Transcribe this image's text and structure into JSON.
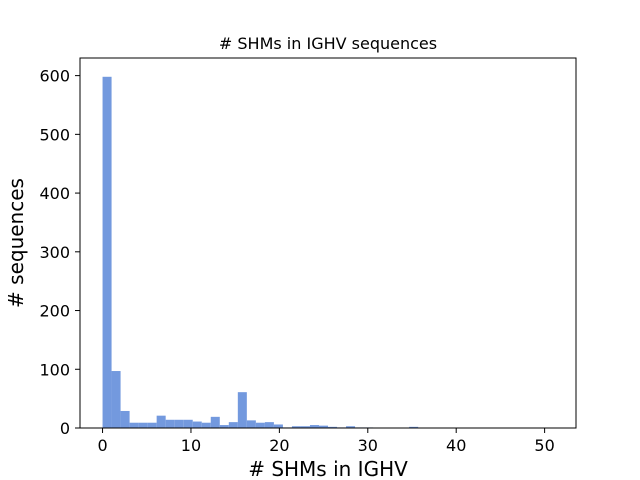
{
  "chart_data": {
    "type": "bar",
    "title": "# SHMs in IGHV sequences",
    "xlabel": "# SHMs in IGHV",
    "ylabel": "# sequences",
    "xlim": [
      -2.55,
      53.55
    ],
    "ylim": [
      0,
      630
    ],
    "xticks": [
      0,
      10,
      20,
      30,
      40,
      50
    ],
    "yticks": [
      0,
      100,
      200,
      300,
      400,
      500,
      600
    ],
    "bin_width": 1.02,
    "bin_start": 0,
    "values": [
      598,
      97,
      29,
      9,
      9,
      9,
      21,
      14,
      14,
      14,
      11,
      9,
      19,
      5,
      10,
      61,
      13,
      9,
      10,
      6,
      1,
      3,
      3,
      5,
      4,
      2,
      1,
      3,
      1,
      1,
      0,
      0,
      0,
      0,
      2,
      0,
      0,
      0,
      0,
      0,
      0,
      0,
      0,
      0,
      0,
      0,
      0,
      0,
      0,
      0
    ],
    "bar_color": "#7399de",
    "grid": false,
    "legend": "none"
  }
}
